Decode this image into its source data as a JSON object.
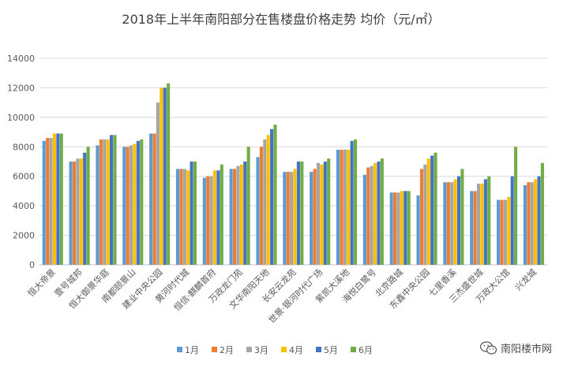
{
  "chart_data": {
    "type": "bar",
    "title": "2018年上半年南阳部分在售楼盘价格走势 均价（元/㎡）",
    "xlabel": "",
    "ylabel": "",
    "ylim": [
      0,
      14000
    ],
    "yticks": [
      0,
      2000,
      4000,
      6000,
      8000,
      10000,
      12000,
      14000
    ],
    "ytick_labels": [
      "0",
      "2000",
      "4000",
      "6000",
      "8000",
      "10000",
      "12000",
      "14000"
    ],
    "grid": true,
    "legend_position": "bottom",
    "categories": [
      "恒大帝景",
      "壹号城邦",
      "恒大御景华庭",
      "南都颐景山",
      "建业中央公园",
      "黄河时代城",
      "恒信·麒麟首府",
      "万政龙门苑",
      "文华南阳天地",
      "长安云龙苑",
      "世景·银河时代广场",
      "紫凯大溪地",
      "海悦白鹭号",
      "北京路城",
      "东鑫中央公园",
      "七里香溪",
      "三杰盛世城",
      "万政大公馆",
      "兴龙城"
    ],
    "series": [
      {
        "name": "1月",
        "color": "#5b9bd5",
        "values": [
          8400,
          7000,
          8100,
          8000,
          8900,
          6500,
          5900,
          6500,
          7300,
          6300,
          6300,
          7800,
          6100,
          4900,
          4700,
          5600,
          5000,
          4400,
          5400
        ]
      },
      {
        "name": "2月",
        "color": "#ed7d31",
        "values": [
          8600,
          7000,
          8500,
          8000,
          8900,
          6500,
          6000,
          6500,
          8000,
          6300,
          6500,
          7800,
          6600,
          4900,
          6500,
          5600,
          5000,
          4400,
          5600
        ]
      },
      {
        "name": "3月",
        "color": "#a5a5a5",
        "values": [
          8600,
          7200,
          8500,
          8100,
          11000,
          6500,
          6000,
          6700,
          8500,
          6300,
          6900,
          7800,
          6700,
          4900,
          6800,
          5600,
          5500,
          4400,
          5600
        ]
      },
      {
        "name": "4月",
        "color": "#ffc000",
        "values": [
          8900,
          7200,
          8500,
          8200,
          12000,
          6400,
          6400,
          6800,
          8800,
          6500,
          6800,
          7800,
          6900,
          5000,
          7200,
          5800,
          5500,
          4600,
          5800
        ]
      },
      {
        "name": "5月",
        "color": "#4472c4",
        "values": [
          8900,
          7600,
          8800,
          8400,
          12000,
          7000,
          6400,
          7000,
          9200,
          7000,
          7000,
          8400,
          7000,
          5000,
          7400,
          6000,
          5800,
          6000,
          6000
        ]
      },
      {
        "name": "6月",
        "color": "#70ad47",
        "values": [
          8900,
          8000,
          8800,
          8500,
          12300,
          7000,
          6800,
          8000,
          9500,
          7000,
          7200,
          8500,
          7200,
          5000,
          7600,
          6500,
          6000,
          8000,
          6900
        ]
      }
    ]
  },
  "watermark": {
    "text": "南阳楼市网",
    "icon": "wechat-icon"
  }
}
